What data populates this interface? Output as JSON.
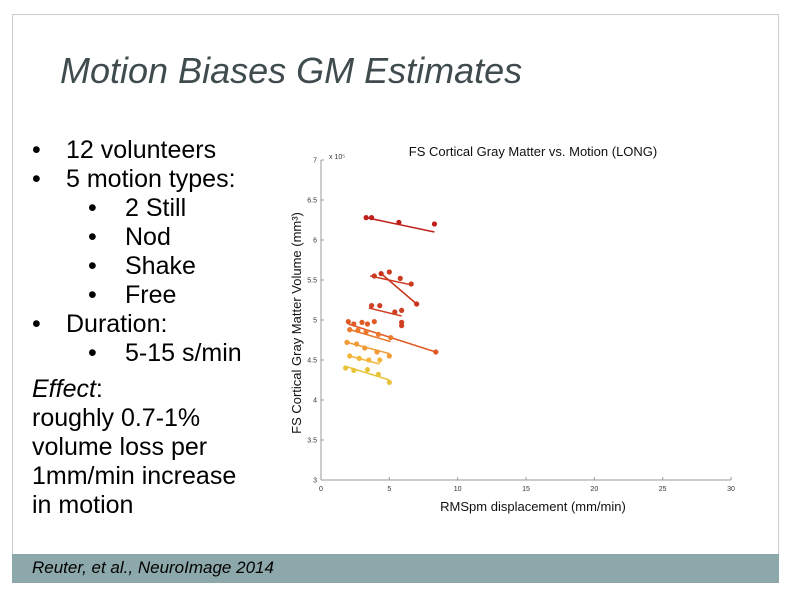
{
  "slide": {
    "title": "Motion Biases GM Estimates",
    "bullets": [
      {
        "level": 1,
        "text": "12 volunteers"
      },
      {
        "level": 1,
        "text": "5 motion types:"
      },
      {
        "level": 2,
        "text": "2 Still"
      },
      {
        "level": 2,
        "text": "Nod"
      },
      {
        "level": 2,
        "text": "Shake"
      },
      {
        "level": 2,
        "text": "Free"
      },
      {
        "level": 1,
        "text": "Duration:"
      },
      {
        "level": 2,
        "text": "5-15 s/min"
      }
    ],
    "bullet_char": "•",
    "effect_label": "Effect",
    "effect_colon": ":",
    "effect_lines": [
      "roughly 0.7-1%",
      "volume loss per",
      "1mm/min increase",
      "in motion"
    ],
    "citation": "Reuter, et al., NeuroImage 2014",
    "colors": {
      "title": "#3f4b4d",
      "footer": "#8da8aa"
    }
  },
  "chart_data": {
    "type": "scatter",
    "title": "FS Cortical Gray Matter vs. Motion (LONG)",
    "xlabel": "RMSpm displacement (mm/min)",
    "ylabel": "FS Cortical Gray Matter Volume (mm³)",
    "y_exponent_label": "x 10⁵",
    "xlim": [
      0,
      30
    ],
    "ylim": [
      3,
      7
    ],
    "xticks": [
      "0",
      "5",
      "10",
      "15",
      "20",
      "25",
      "30"
    ],
    "yticks": [
      "3",
      "3.5",
      "4",
      "4.5",
      "5",
      "5.5",
      "6",
      "6.5",
      "7"
    ],
    "grid": false,
    "series": [
      {
        "color": "#c0201c",
        "points": [
          [
            3.3,
            6.28
          ],
          [
            3.7,
            6.28
          ],
          [
            5.7,
            6.22
          ],
          [
            8.3,
            6.2
          ]
        ],
        "fit": [
          [
            3.3,
            6.28
          ],
          [
            8.3,
            6.1
          ]
        ]
      },
      {
        "color": "#c8321c",
        "points": [
          [
            4.4,
            5.58
          ],
          [
            7.0,
            5.2
          ]
        ],
        "fit": [
          [
            4.4,
            5.58
          ],
          [
            7.0,
            5.2
          ]
        ]
      },
      {
        "color": "#cc3a1f",
        "points": [
          [
            3.9,
            5.55
          ],
          [
            5.0,
            5.6
          ],
          [
            5.8,
            5.52
          ],
          [
            6.6,
            5.45
          ]
        ],
        "fit": [
          [
            3.6,
            5.55
          ],
          [
            6.6,
            5.44
          ]
        ]
      },
      {
        "color": "#cf3f22",
        "points": [
          [
            3.7,
            5.18
          ],
          [
            4.3,
            5.18
          ],
          [
            5.4,
            5.1
          ],
          [
            5.9,
            5.12
          ],
          [
            5.9,
            4.97
          ],
          [
            5.9,
            4.93
          ]
        ],
        "fit": [
          [
            3.5,
            5.15
          ],
          [
            5.9,
            5.05
          ]
        ]
      },
      {
        "color": "#e05a26",
        "points": [
          [
            2.0,
            4.98
          ],
          [
            2.4,
            4.95
          ],
          [
            3.0,
            4.97
          ],
          [
            3.4,
            4.95
          ],
          [
            3.9,
            4.98
          ],
          [
            8.4,
            4.6
          ]
        ],
        "fit": [
          [
            2.0,
            4.95
          ],
          [
            8.4,
            4.6
          ]
        ]
      },
      {
        "color": "#ea7a2c",
        "points": [
          [
            2.1,
            4.88
          ],
          [
            2.7,
            4.87
          ],
          [
            3.3,
            4.85
          ],
          [
            4.2,
            4.82
          ],
          [
            5.1,
            4.78
          ]
        ],
        "fit": [
          [
            2.1,
            4.88
          ],
          [
            5.1,
            4.73
          ]
        ]
      },
      {
        "color": "#f29a35",
        "points": [
          [
            1.9,
            4.72
          ],
          [
            2.6,
            4.7
          ],
          [
            3.2,
            4.65
          ],
          [
            4.1,
            4.6
          ],
          [
            5.0,
            4.55
          ]
        ],
        "fit": [
          [
            1.9,
            4.72
          ],
          [
            5.0,
            4.58
          ]
        ]
      },
      {
        "color": "#f4b73c",
        "points": [
          [
            2.1,
            4.55
          ],
          [
            2.8,
            4.52
          ],
          [
            3.5,
            4.5
          ],
          [
            4.3,
            4.5
          ]
        ],
        "fit": [
          [
            2.1,
            4.55
          ],
          [
            4.3,
            4.45
          ]
        ]
      },
      {
        "color": "#e8c43a",
        "points": [
          [
            1.8,
            4.4
          ],
          [
            2.4,
            4.37
          ],
          [
            3.4,
            4.38
          ],
          [
            4.2,
            4.32
          ],
          [
            5.0,
            4.22
          ]
        ],
        "fit": [
          [
            1.8,
            4.42
          ],
          [
            5.0,
            4.25
          ]
        ]
      }
    ]
  }
}
